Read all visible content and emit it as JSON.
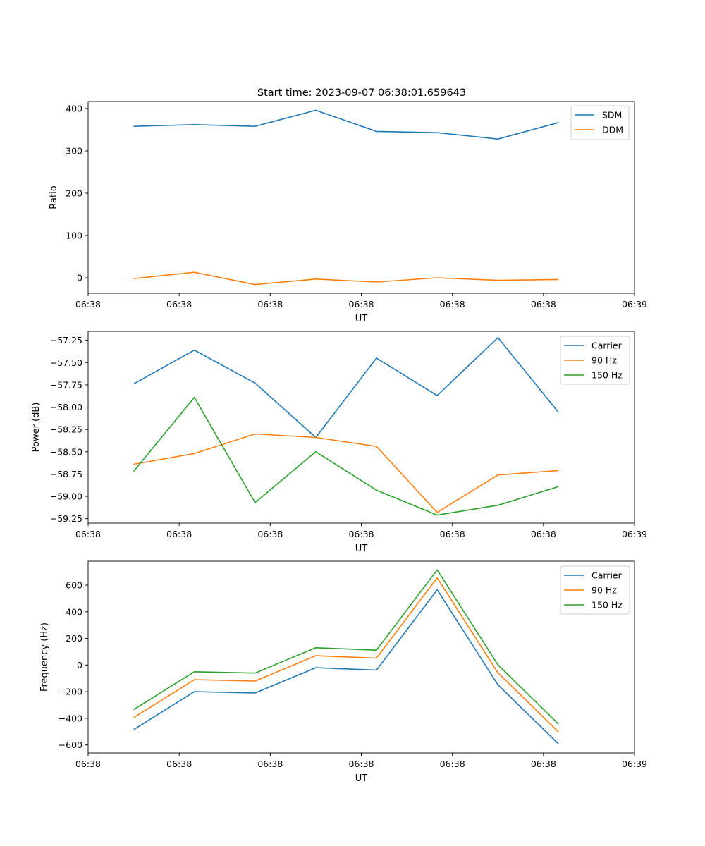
{
  "figure_title": "Start time: 2023-09-07 06:38:01.659643",
  "colors": {
    "blue": "#1f77b4",
    "orange": "#ff7f0e",
    "green": "#2ca02c"
  },
  "chart_data": [
    {
      "type": "line",
      "title": "Start time: 2023-09-07 06:38:01.659643",
      "xlabel": "UT",
      "ylabel": "Ratio",
      "x": [
        1,
        2,
        3,
        4,
        5,
        6,
        7,
        8
      ],
      "xlim": [
        0.25,
        9.25
      ],
      "xticks": [
        0.25,
        1.75,
        3.25,
        4.75,
        6.25,
        7.75,
        9.25
      ],
      "xtick_labels": [
        "06:38",
        "06:38",
        "06:38",
        "06:38",
        "06:38",
        "06:38",
        "06:39"
      ],
      "ylim": [
        -36.6,
        416.6
      ],
      "yticks": [
        0,
        100,
        200,
        300,
        400
      ],
      "ytick_labels": [
        "0",
        "100",
        "200",
        "300",
        "400"
      ],
      "legend": "top-right",
      "series": [
        {
          "name": "SDM",
          "color": "#1f77b4",
          "values": [
            358,
            362,
            358,
            396,
            346,
            343,
            328,
            367
          ]
        },
        {
          "name": "DDM",
          "color": "#ff7f0e",
          "values": [
            -2,
            13,
            -16,
            -3,
            -10,
            0,
            -6,
            -4
          ]
        }
      ]
    },
    {
      "type": "line",
      "xlabel": "UT",
      "ylabel": "Power (dB)",
      "x": [
        1,
        2,
        3,
        4,
        5,
        6,
        7,
        8
      ],
      "xlim": [
        0.25,
        9.25
      ],
      "xticks": [
        0.25,
        1.75,
        3.25,
        4.75,
        6.25,
        7.75,
        9.25
      ],
      "xtick_labels": [
        "06:38",
        "06:38",
        "06:38",
        "06:38",
        "06:38",
        "06:38",
        "06:39"
      ],
      "ylim": [
        -59.3,
        -57.15
      ],
      "yticks": [
        -59.25,
        -59.0,
        -58.75,
        -58.5,
        -58.25,
        -58.0,
        -57.75,
        -57.5,
        -57.25
      ],
      "ytick_labels": [
        "−59.25",
        "−59.00",
        "−58.75",
        "−58.50",
        "−58.25",
        "−58.00",
        "−57.75",
        "−57.50",
        "−57.25"
      ],
      "legend": "top-right",
      "series": [
        {
          "name": "Carrier",
          "color": "#1f77b4",
          "values": [
            -57.74,
            -57.36,
            -57.73,
            -58.34,
            -57.45,
            -57.87,
            -57.22,
            -58.06
          ]
        },
        {
          "name": "90 Hz",
          "color": "#ff7f0e",
          "values": [
            -58.64,
            -58.52,
            -58.3,
            -58.34,
            -58.44,
            -59.18,
            -58.76,
            -58.71
          ]
        },
        {
          "name": "150 Hz",
          "color": "#2ca02c",
          "values": [
            -58.72,
            -57.89,
            -59.07,
            -58.5,
            -58.93,
            -59.21,
            -59.1,
            -58.89
          ]
        }
      ]
    },
    {
      "type": "line",
      "xlabel": "UT",
      "ylabel": "Frequency (Hz)",
      "x": [
        1,
        2,
        3,
        4,
        5,
        6,
        7,
        8
      ],
      "xlim": [
        0.25,
        9.25
      ],
      "xticks": [
        0.25,
        1.75,
        3.25,
        4.75,
        6.25,
        7.75,
        9.25
      ],
      "xtick_labels": [
        "06:38",
        "06:38",
        "06:38",
        "06:38",
        "06:38",
        "06:38",
        "06:39"
      ],
      "ylim": [
        -660,
        780
      ],
      "yticks": [
        -600,
        -400,
        -200,
        0,
        200,
        400,
        600
      ],
      "ytick_labels": [
        "−600",
        "−400",
        "−200",
        "0",
        "200",
        "400",
        "600"
      ],
      "legend": "top-right",
      "series": [
        {
          "name": "Carrier",
          "color": "#1f77b4",
          "values": [
            -485,
            -200,
            -210,
            -20,
            -38,
            565,
            -148,
            -594
          ]
        },
        {
          "name": "90 Hz",
          "color": "#ff7f0e",
          "values": [
            -395,
            -110,
            -120,
            70,
            52,
            655,
            -58,
            -504
          ]
        },
        {
          "name": "150 Hz",
          "color": "#2ca02c",
          "values": [
            -335,
            -50,
            -60,
            130,
            112,
            715,
            2,
            -444
          ]
        }
      ]
    }
  ]
}
